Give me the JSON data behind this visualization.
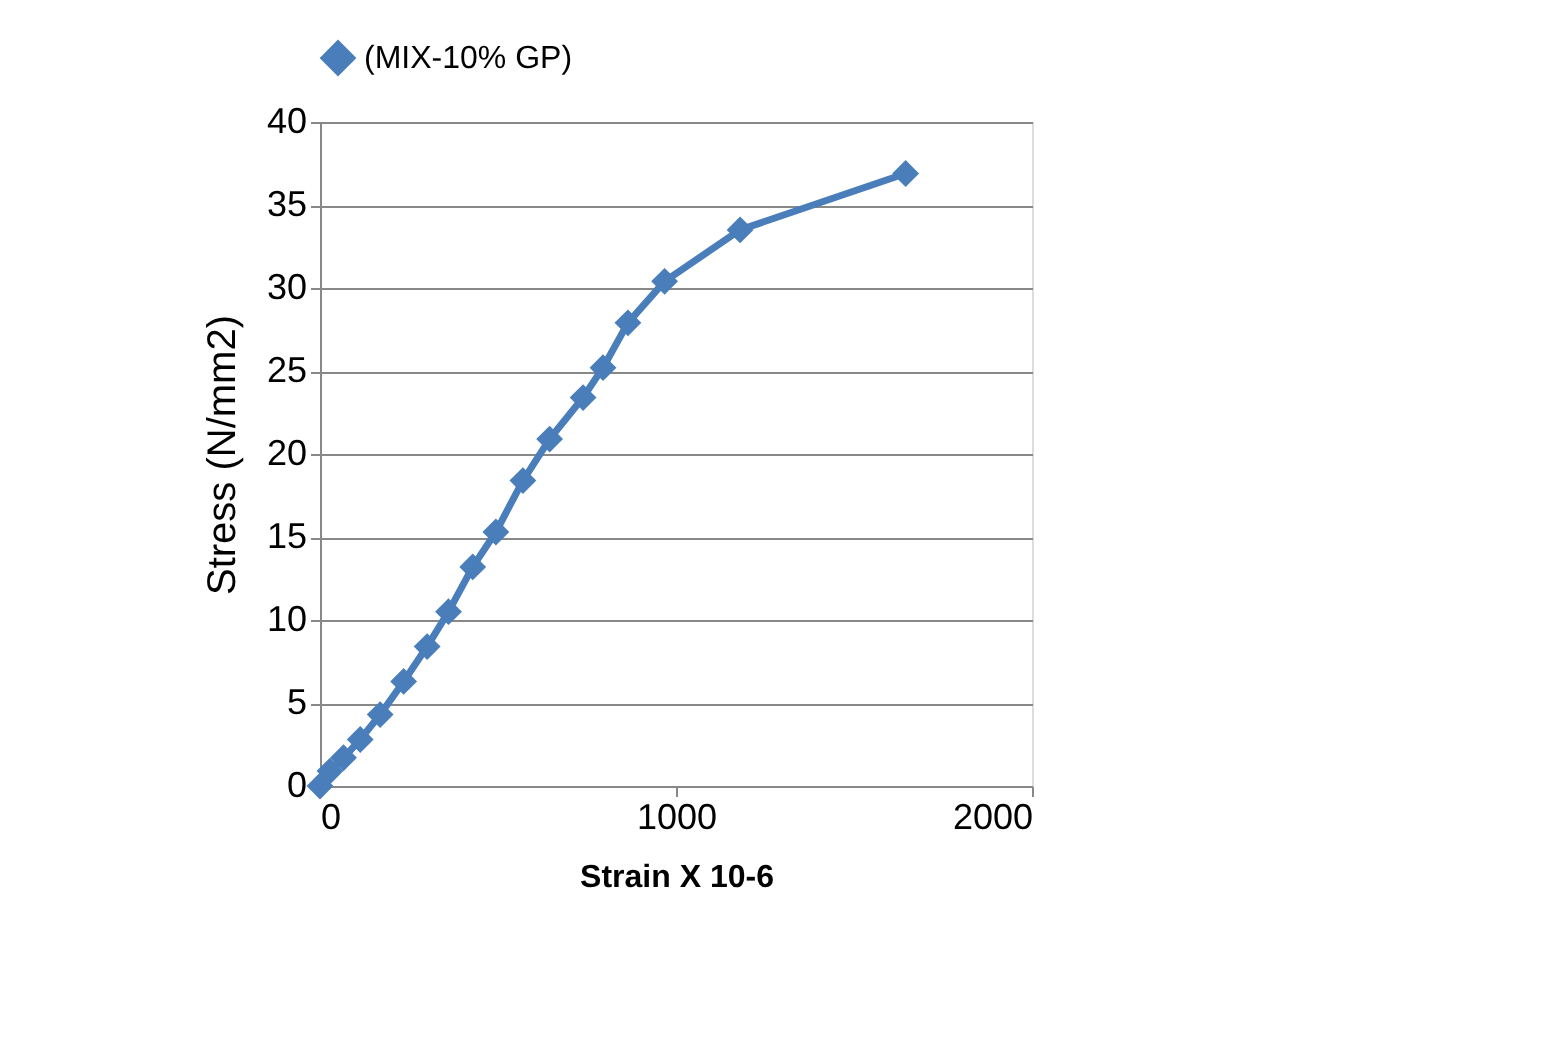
{
  "chart_data": {
    "type": "line",
    "xlabel": "Strain X 10-6",
    "ylabel": "Stress (N/mm2)",
    "x": [
      0,
      28,
      66,
      113,
      169,
      235,
      301,
      361,
      429,
      494,
      570,
      645,
      739,
      795,
      865,
      968,
      1180,
      1645
    ],
    "series": [
      {
        "name": "(MIX-10% GP)",
        "color": "#4a7ebb",
        "values": [
          0,
          0.9,
          1.7,
          2.8,
          4.3,
          6.3,
          8.4,
          10.5,
          13.2,
          15.3,
          18.4,
          20.9,
          23.4,
          25.2,
          27.9,
          30.4,
          33.5,
          36.9
        ]
      }
    ],
    "xlim": [
      0,
      2000
    ],
    "xticks": [
      0,
      1000,
      2000
    ],
    "ylim": [
      0,
      40
    ],
    "yticks": [
      0,
      5,
      10,
      15,
      20,
      25,
      30,
      35,
      40
    ],
    "grid": "y",
    "legend": "top",
    "marker": "diamond",
    "line_style": "solid"
  }
}
